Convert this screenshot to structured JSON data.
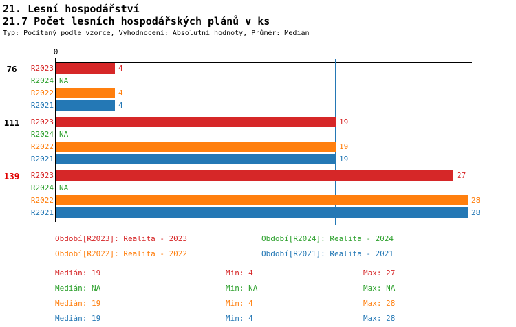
{
  "header": {
    "title_line1": "21. Lesní hospodářství",
    "title_line2": "21.7 Počet lesních hospodářských plánů v ks",
    "subtitle": "Typ: Počítaný podle vzorce, Vyhodnocení: Absolutní hodnoty, Průměr: Medián"
  },
  "colors": {
    "R2023": "#d62728",
    "R2024": "#2ea12e",
    "R2022": "#ff7f0e",
    "R2021": "#2478b5",
    "axis": "#000000",
    "median_line": "#2478b5",
    "group_label_default": "#000000",
    "group_label_highlight": "#e00000"
  },
  "chart_data": {
    "type": "bar",
    "orientation": "horizontal",
    "title": "21.7 Počet lesních hospodářských plánů v ks",
    "x_axis": {
      "tick_labels": [
        "0"
      ],
      "min": 0,
      "max": 28.3,
      "grid": false
    },
    "median_reference_line_x": 19,
    "na_text": "NA",
    "series_order": [
      "R2023",
      "R2024",
      "R2022",
      "R2021"
    ],
    "groups": [
      {
        "label": "76",
        "highlighted": false,
        "bars": [
          {
            "series": "R2023",
            "value": 4
          },
          {
            "series": "R2024",
            "value": null
          },
          {
            "series": "R2022",
            "value": 4
          },
          {
            "series": "R2021",
            "value": 4
          }
        ]
      },
      {
        "label": "111",
        "highlighted": false,
        "bars": [
          {
            "series": "R2023",
            "value": 19
          },
          {
            "series": "R2024",
            "value": null
          },
          {
            "series": "R2022",
            "value": 19
          },
          {
            "series": "R2021",
            "value": 19
          }
        ]
      },
      {
        "label": "139",
        "highlighted": true,
        "bars": [
          {
            "series": "R2023",
            "value": 27
          },
          {
            "series": "R2024",
            "value": null
          },
          {
            "series": "R2022",
            "value": 28
          },
          {
            "series": "R2021",
            "value": 28
          }
        ]
      }
    ]
  },
  "legend": [
    {
      "series": "R2023",
      "label": "Období[R2023]: Realita - 2023"
    },
    {
      "series": "R2024",
      "label": "Období[R2024]: Realita - 2024"
    },
    {
      "series": "R2022",
      "label": "Období[R2022]: Realita - 2022"
    },
    {
      "series": "R2021",
      "label": "Období[R2021]: Realita - 2021"
    }
  ],
  "stats": [
    {
      "series": "R2023",
      "median": "Medián: 19",
      "min": "Min: 4",
      "max": "Max: 27"
    },
    {
      "series": "R2024",
      "median": "Medián: NA",
      "min": "Min: NA",
      "max": "Max: NA"
    },
    {
      "series": "R2022",
      "median": "Medián: 19",
      "min": "Min: 4",
      "max": "Max: 28"
    },
    {
      "series": "R2021",
      "median": "Medián: 19",
      "min": "Min: 4",
      "max": "Max: 28"
    }
  ]
}
